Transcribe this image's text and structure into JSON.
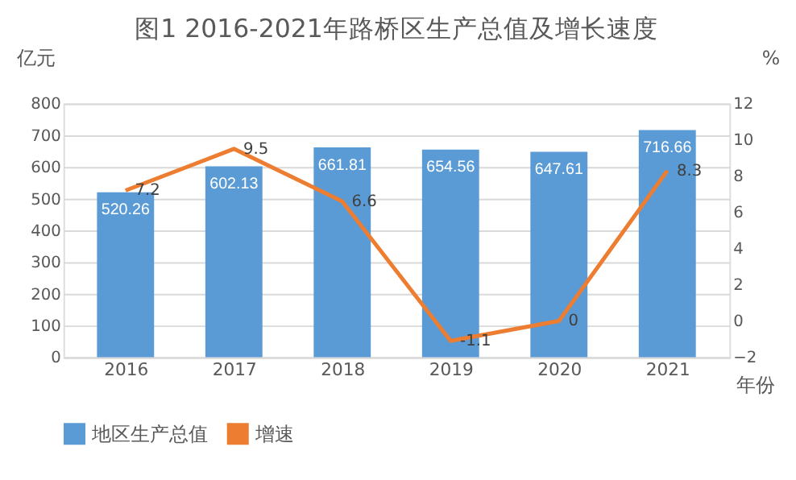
{
  "chart_data": {
    "type": "bar",
    "title": "图1  2016-2021年路桥区生产总值及增长速度",
    "xlabel": "年份",
    "ylabel": "亿元",
    "y2label": "%",
    "categories": [
      "2016",
      "2017",
      "2018",
      "2019",
      "2020",
      "2021"
    ],
    "series": [
      {
        "name": "地区生产总值",
        "color": "#5b9bd5",
        "values": [
          520.26,
          602.13,
          661.81,
          654.56,
          647.61,
          716.66
        ]
      },
      {
        "name": "增速",
        "type": "line",
        "axis": "y2",
        "color": "#ed7d31",
        "values": [
          7.2,
          9.5,
          6.6,
          -1.1,
          0,
          8.3
        ]
      }
    ],
    "ylim": [
      0,
      800
    ],
    "yticks": [
      0,
      100,
      200,
      300,
      400,
      500,
      600,
      700,
      800
    ],
    "y2lim": [
      -2,
      12
    ],
    "y2ticks": [
      -2,
      0,
      2,
      4,
      6,
      8,
      10,
      12
    ],
    "grid": "y",
    "legend": "bottom",
    "data_labels": true,
    "marker": "none",
    "line_style": "solid"
  }
}
